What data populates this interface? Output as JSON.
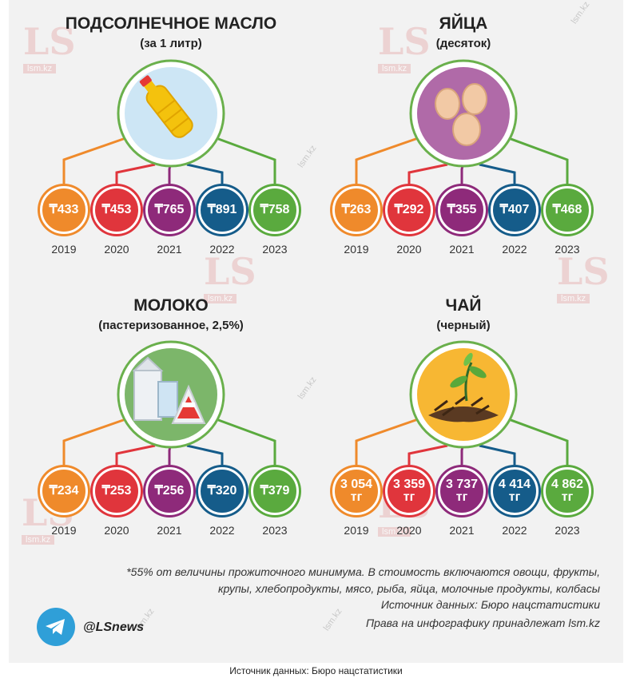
{
  "chart_data": [
    {
      "type": "bar",
      "title": "ПОДСОЛНЕЧНОЕ МАСЛО",
      "subtitle": "(за 1 литр)",
      "categories": [
        "2019",
        "2020",
        "2021",
        "2022",
        "2023"
      ],
      "values": [
        433,
        453,
        765,
        891,
        758
      ],
      "labels": [
        "₸433",
        "₸453",
        "₸765",
        "₸891",
        "₸758"
      ],
      "icon": "oil-bottle-icon"
    },
    {
      "type": "bar",
      "title": "ЯЙЦА",
      "subtitle": "(десяток)",
      "categories": [
        "2019",
        "2020",
        "2021",
        "2022",
        "2023"
      ],
      "values": [
        263,
        292,
        355,
        407,
        468
      ],
      "labels": [
        "₸263",
        "₸292",
        "₸355",
        "₸407",
        "₸468"
      ],
      "icon": "eggs-icon"
    },
    {
      "type": "bar",
      "title": "МОЛОКО",
      "subtitle": "(пастеризованное, 2,5%)",
      "categories": [
        "2019",
        "2020",
        "2021",
        "2022",
        "2023"
      ],
      "values": [
        234,
        253,
        256,
        320,
        379
      ],
      "labels": [
        "₸234",
        "₸253",
        "₸256",
        "₸320",
        "₸379"
      ],
      "icon": "milk-cartons-icon"
    },
    {
      "type": "bar",
      "title": "ЧАЙ",
      "subtitle": "(черный)",
      "categories": [
        "2019",
        "2020",
        "2021",
        "2022",
        "2023"
      ],
      "values": [
        3054,
        3359,
        3737,
        4414,
        4862
      ],
      "labels": [
        "3 054 тг",
        "3 359 тг",
        "3 737 тг",
        "4 414 тг",
        "4 862 тг"
      ],
      "icon": "tea-leaves-icon"
    }
  ],
  "colors": [
    "#ef8a2b",
    "#e0353c",
    "#8e2a7a",
    "#155c8a",
    "#5aaa3e"
  ],
  "watermark": {
    "brand": "LS",
    "site": "lsm.kz"
  },
  "footnote": "*55% от величины прожиточного минимума. В стоимость включаются овощи, фрукты, крупы, хлебопродукты, мясо, рыба, яйца, молочные продукты, колбасы",
  "source": "Источник данных: Бюро нацстатистики",
  "rights": "Права на инфографику принадлежат lsm.kz",
  "telegram_handle": "@LSnews",
  "caption": "Источник данных: Бюро нацстатистики"
}
